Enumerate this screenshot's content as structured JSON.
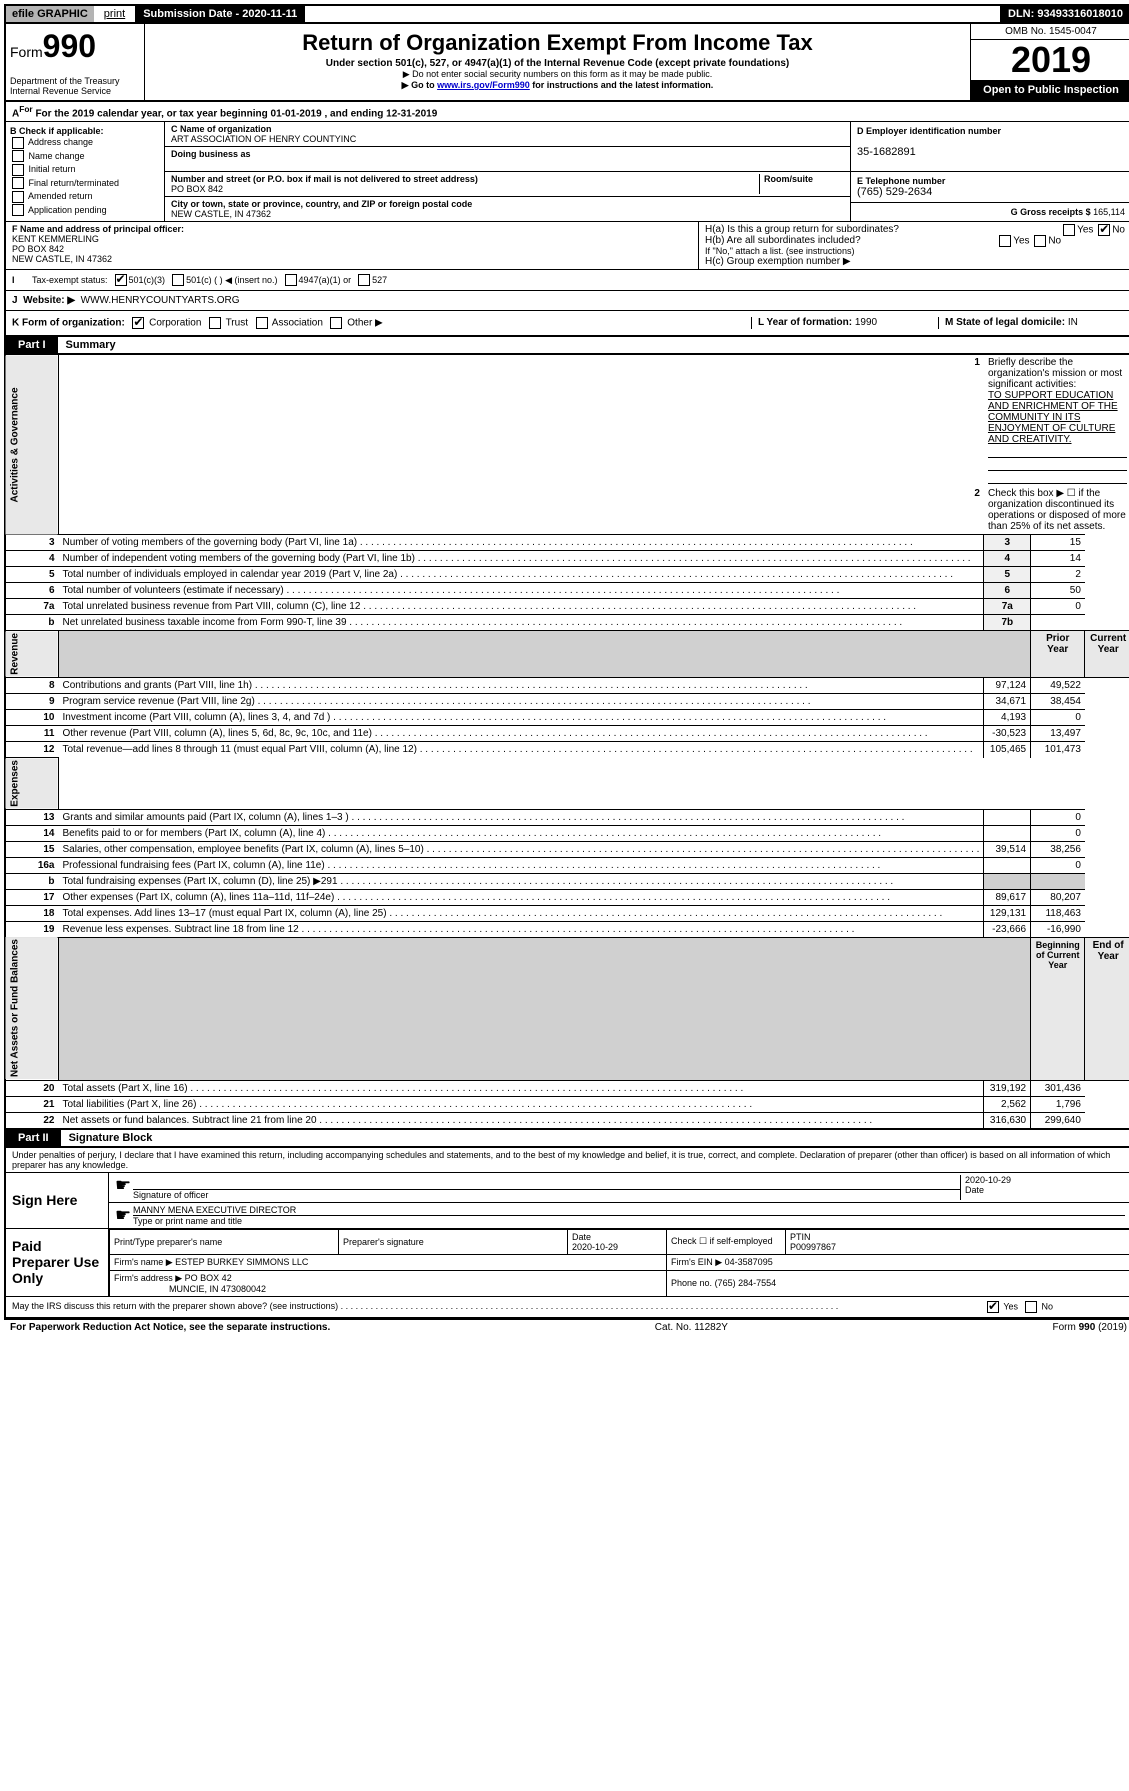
{
  "topbar": {
    "efile": "efile GRAPHIC",
    "print": "print",
    "submission": "Submission Date - 2020-11-11",
    "dln": "DLN: 93493316018010"
  },
  "header": {
    "form_label": "Form",
    "form_num": "990",
    "dept": "Department of the Treasury",
    "irs": "Internal Revenue Service",
    "title": "Return of Organization Exempt From Income Tax",
    "sub": "Under section 501(c), 527, or 4947(a)(1) of the Internal Revenue Code (except private foundations)",
    "note1": "▶ Do not enter social security numbers on this form as it may be made public.",
    "note2_pre": "▶ Go to ",
    "note2_link": "www.irs.gov/Form990",
    "note2_post": " for instructions and the latest information.",
    "omb": "OMB No. 1545-0047",
    "year": "2019",
    "open": "Open to Public Inspection"
  },
  "a": {
    "tax_year": "For the 2019 calendar year, or tax year beginning 01-01-2019  , and ending 12-31-2019"
  },
  "b": {
    "label": "B Check if applicable:",
    "opts": [
      "Address change",
      "Name change",
      "Initial return",
      "Final return/terminated",
      "Amended return",
      "Application pending"
    ]
  },
  "c": {
    "name_label": "C Name of organization",
    "name": "ART ASSOCIATION OF HENRY COUNTYINC",
    "dba_label": "Doing business as",
    "addr_label": "Number and street (or P.O. box if mail is not delivered to street address)",
    "room_label": "Room/suite",
    "addr": "PO BOX 842",
    "city_label": "City or town, state or province, country, and ZIP or foreign postal code",
    "city": "NEW CASTLE, IN  47362"
  },
  "d": {
    "ein_label": "D Employer identification number",
    "ein": "35-1682891",
    "phone_label": "E Telephone number",
    "phone": "(765) 529-2634",
    "gross_label": "G Gross receipts $",
    "gross": "165,114"
  },
  "f": {
    "label": "F  Name and address of principal officer:",
    "name": "KENT KEMMERLING",
    "addr1": "PO BOX 842",
    "addr2": "NEW CASTLE, IN  47362"
  },
  "h": {
    "ha": "H(a)  Is this a group return for subordinates?",
    "hb": "H(b)  Are all subordinates included?",
    "hb_note": "If \"No,\" attach a list. (see instructions)",
    "hc": "H(c)  Group exemption number ▶"
  },
  "i": {
    "label": "Tax-exempt status:",
    "opt1": "501(c)(3)",
    "opt2": "501(c) (  ) ◀ (insert no.)",
    "opt3": "4947(a)(1) or",
    "opt4": "527"
  },
  "j": {
    "label": "Website: ▶",
    "url": "WWW.HENRYCOUNTYARTS.ORG"
  },
  "k": {
    "label": "K Form of organization:",
    "opts": [
      "Corporation",
      "Trust",
      "Association",
      "Other ▶"
    ],
    "l_label": "L Year of formation:",
    "l_val": "1990",
    "m_label": "M State of legal domicile:",
    "m_val": "IN"
  },
  "part1": {
    "label": "Part I",
    "title": "Summary",
    "line1_label": "Briefly describe the organization's mission or most significant activities:",
    "line1_val": "TO SUPPORT EDUCATION AND ENRICHMENT OF THE COMMUNITY IN ITS ENJOYMENT OF CULTURE AND CREATIVITY.",
    "line2": "Check this box ▶ ☐  if the organization discontinued its operations or disposed of more than 25% of its net assets.",
    "vlabel_gov": "Activities & Governance",
    "vlabel_rev": "Revenue",
    "vlabel_exp": "Expenses",
    "vlabel_net": "Net Assets or Fund Balances",
    "rows_single": [
      {
        "n": "3",
        "d": "Number of voting members of the governing body (Part VI, line 1a)",
        "c": "3",
        "v": "15"
      },
      {
        "n": "4",
        "d": "Number of independent voting members of the governing body (Part VI, line 1b)",
        "c": "4",
        "v": "14"
      },
      {
        "n": "5",
        "d": "Total number of individuals employed in calendar year 2019 (Part V, line 2a)",
        "c": "5",
        "v": "2"
      },
      {
        "n": "6",
        "d": "Total number of volunteers (estimate if necessary)",
        "c": "6",
        "v": "50"
      },
      {
        "n": "7a",
        "d": "Total unrelated business revenue from Part VIII, column (C), line 12",
        "c": "7a",
        "v": "0"
      },
      {
        "n": "b",
        "d": "Net unrelated business taxable income from Form 990-T, line 39",
        "c": "7b",
        "v": ""
      }
    ],
    "prior_label": "Prior Year",
    "current_label": "Current Year",
    "rows_rev": [
      {
        "n": "8",
        "d": "Contributions and grants (Part VIII, line 1h)",
        "p": "97,124",
        "c": "49,522"
      },
      {
        "n": "9",
        "d": "Program service revenue (Part VIII, line 2g)",
        "p": "34,671",
        "c": "38,454"
      },
      {
        "n": "10",
        "d": "Investment income (Part VIII, column (A), lines 3, 4, and 7d )",
        "p": "4,193",
        "c": "0"
      },
      {
        "n": "11",
        "d": "Other revenue (Part VIII, column (A), lines 5, 6d, 8c, 9c, 10c, and 11e)",
        "p": "-30,523",
        "c": "13,497"
      },
      {
        "n": "12",
        "d": "Total revenue—add lines 8 through 11 (must equal Part VIII, column (A), line 12)",
        "p": "105,465",
        "c": "101,473"
      }
    ],
    "rows_exp": [
      {
        "n": "13",
        "d": "Grants and similar amounts paid (Part IX, column (A), lines 1–3 )",
        "p": "",
        "c": "0"
      },
      {
        "n": "14",
        "d": "Benefits paid to or for members (Part IX, column (A), line 4)",
        "p": "",
        "c": "0"
      },
      {
        "n": "15",
        "d": "Salaries, other compensation, employee benefits (Part IX, column (A), lines 5–10)",
        "p": "39,514",
        "c": "38,256"
      },
      {
        "n": "16a",
        "d": "Professional fundraising fees (Part IX, column (A), line 11e)",
        "p": "",
        "c": "0"
      },
      {
        "n": "b",
        "d": "Total fundraising expenses (Part IX, column (D), line 25) ▶291",
        "p": "SHADED",
        "c": "SHADED"
      },
      {
        "n": "17",
        "d": "Other expenses (Part IX, column (A), lines 11a–11d, 11f–24e)",
        "p": "89,617",
        "c": "80,207"
      },
      {
        "n": "18",
        "d": "Total expenses. Add lines 13–17 (must equal Part IX, column (A), line 25)",
        "p": "129,131",
        "c": "118,463"
      },
      {
        "n": "19",
        "d": "Revenue less expenses. Subtract line 18 from line 12",
        "p": "-23,666",
        "c": "-16,990"
      }
    ],
    "begin_label": "Beginning of Current Year",
    "end_label": "End of Year",
    "rows_net": [
      {
        "n": "20",
        "d": "Total assets (Part X, line 16)",
        "p": "319,192",
        "c": "301,436"
      },
      {
        "n": "21",
        "d": "Total liabilities (Part X, line 26)",
        "p": "2,562",
        "c": "1,796"
      },
      {
        "n": "22",
        "d": "Net assets or fund balances. Subtract line 21 from line 20",
        "p": "316,630",
        "c": "299,640"
      }
    ]
  },
  "part2": {
    "label": "Part II",
    "title": "Signature Block",
    "intro": "Under penalties of perjury, I declare that I have examined this return, including accompanying schedules and statements, and to the best of my knowledge and belief, it is true, correct, and complete. Declaration of preparer (other than officer) is based on all information of which preparer has any knowledge.",
    "sign_here": "Sign Here",
    "sig_officer": "Signature of officer",
    "date1": "2020-10-29",
    "date_label": "Date",
    "officer_name": "MANNY MENA  EXECUTIVE DIRECTOR",
    "type_name": "Type or print name and title",
    "paid": "Paid Preparer Use Only",
    "prep_name_label": "Print/Type preparer's name",
    "prep_sig_label": "Preparer's signature",
    "prep_date_label": "Date",
    "prep_date": "2020-10-29",
    "check_if": "Check ☐ if self-employed",
    "ptin_label": "PTIN",
    "ptin": "P00997867",
    "firm_name_label": "Firm's name   ▶",
    "firm_name": "ESTEP BURKEY SIMMONS LLC",
    "firm_ein_label": "Firm's EIN ▶",
    "firm_ein": "04-3587095",
    "firm_addr_label": "Firm's address ▶",
    "firm_addr": "PO BOX 42",
    "firm_city": "MUNCIE, IN  473080042",
    "phone_label": "Phone no.",
    "phone": "(765) 284-7554",
    "discuss": "May the IRS discuss this return with the preparer shown above? (see instructions)"
  },
  "footer": {
    "paperwork": "For Paperwork Reduction Act Notice, see the separate instructions.",
    "cat": "Cat. No. 11282Y",
    "form": "Form 990 (2019)"
  }
}
